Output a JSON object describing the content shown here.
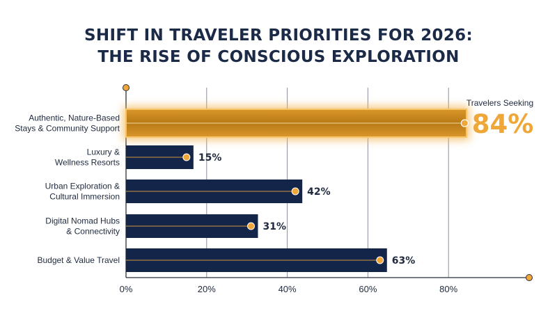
{
  "chart_data": {
    "type": "bar",
    "orientation": "horizontal",
    "title_lines": [
      "SHIFT IN TRAVELER PRIORITIES FOR 2026:",
      "THE RISE OF CONSCIOUS EXPLORATION"
    ],
    "categories": [
      [
        "Authentic, Nature-Based",
        "Stays & Community Support"
      ],
      [
        "Luxury &",
        "Wellness Resorts"
      ],
      [
        "Urban Exploration &",
        "Cultural Immersion"
      ],
      [
        "Digital Nomad Hubs",
        "& Connectivity"
      ],
      [
        "Budget & Value Travel"
      ]
    ],
    "values": [
      84,
      15,
      42,
      31,
      63
    ],
    "value_labels": [
      "84%",
      "15%",
      "42%",
      "31%",
      "63%"
    ],
    "highlight_index": 0,
    "highlight_caption": "Travelers Seeking",
    "x_ticks": [
      0,
      20,
      40,
      60,
      80
    ],
    "x_tick_labels": [
      "0%",
      "20%",
      "40%",
      "60%",
      "80%"
    ],
    "xlim": [
      0,
      100
    ],
    "grid": "vertical",
    "colors": {
      "bar": "#14254a",
      "highlight_bar": "#c98a1f",
      "accent": "#f0a73a",
      "title": "#1b2a47",
      "text": "#1f2a3d"
    }
  }
}
